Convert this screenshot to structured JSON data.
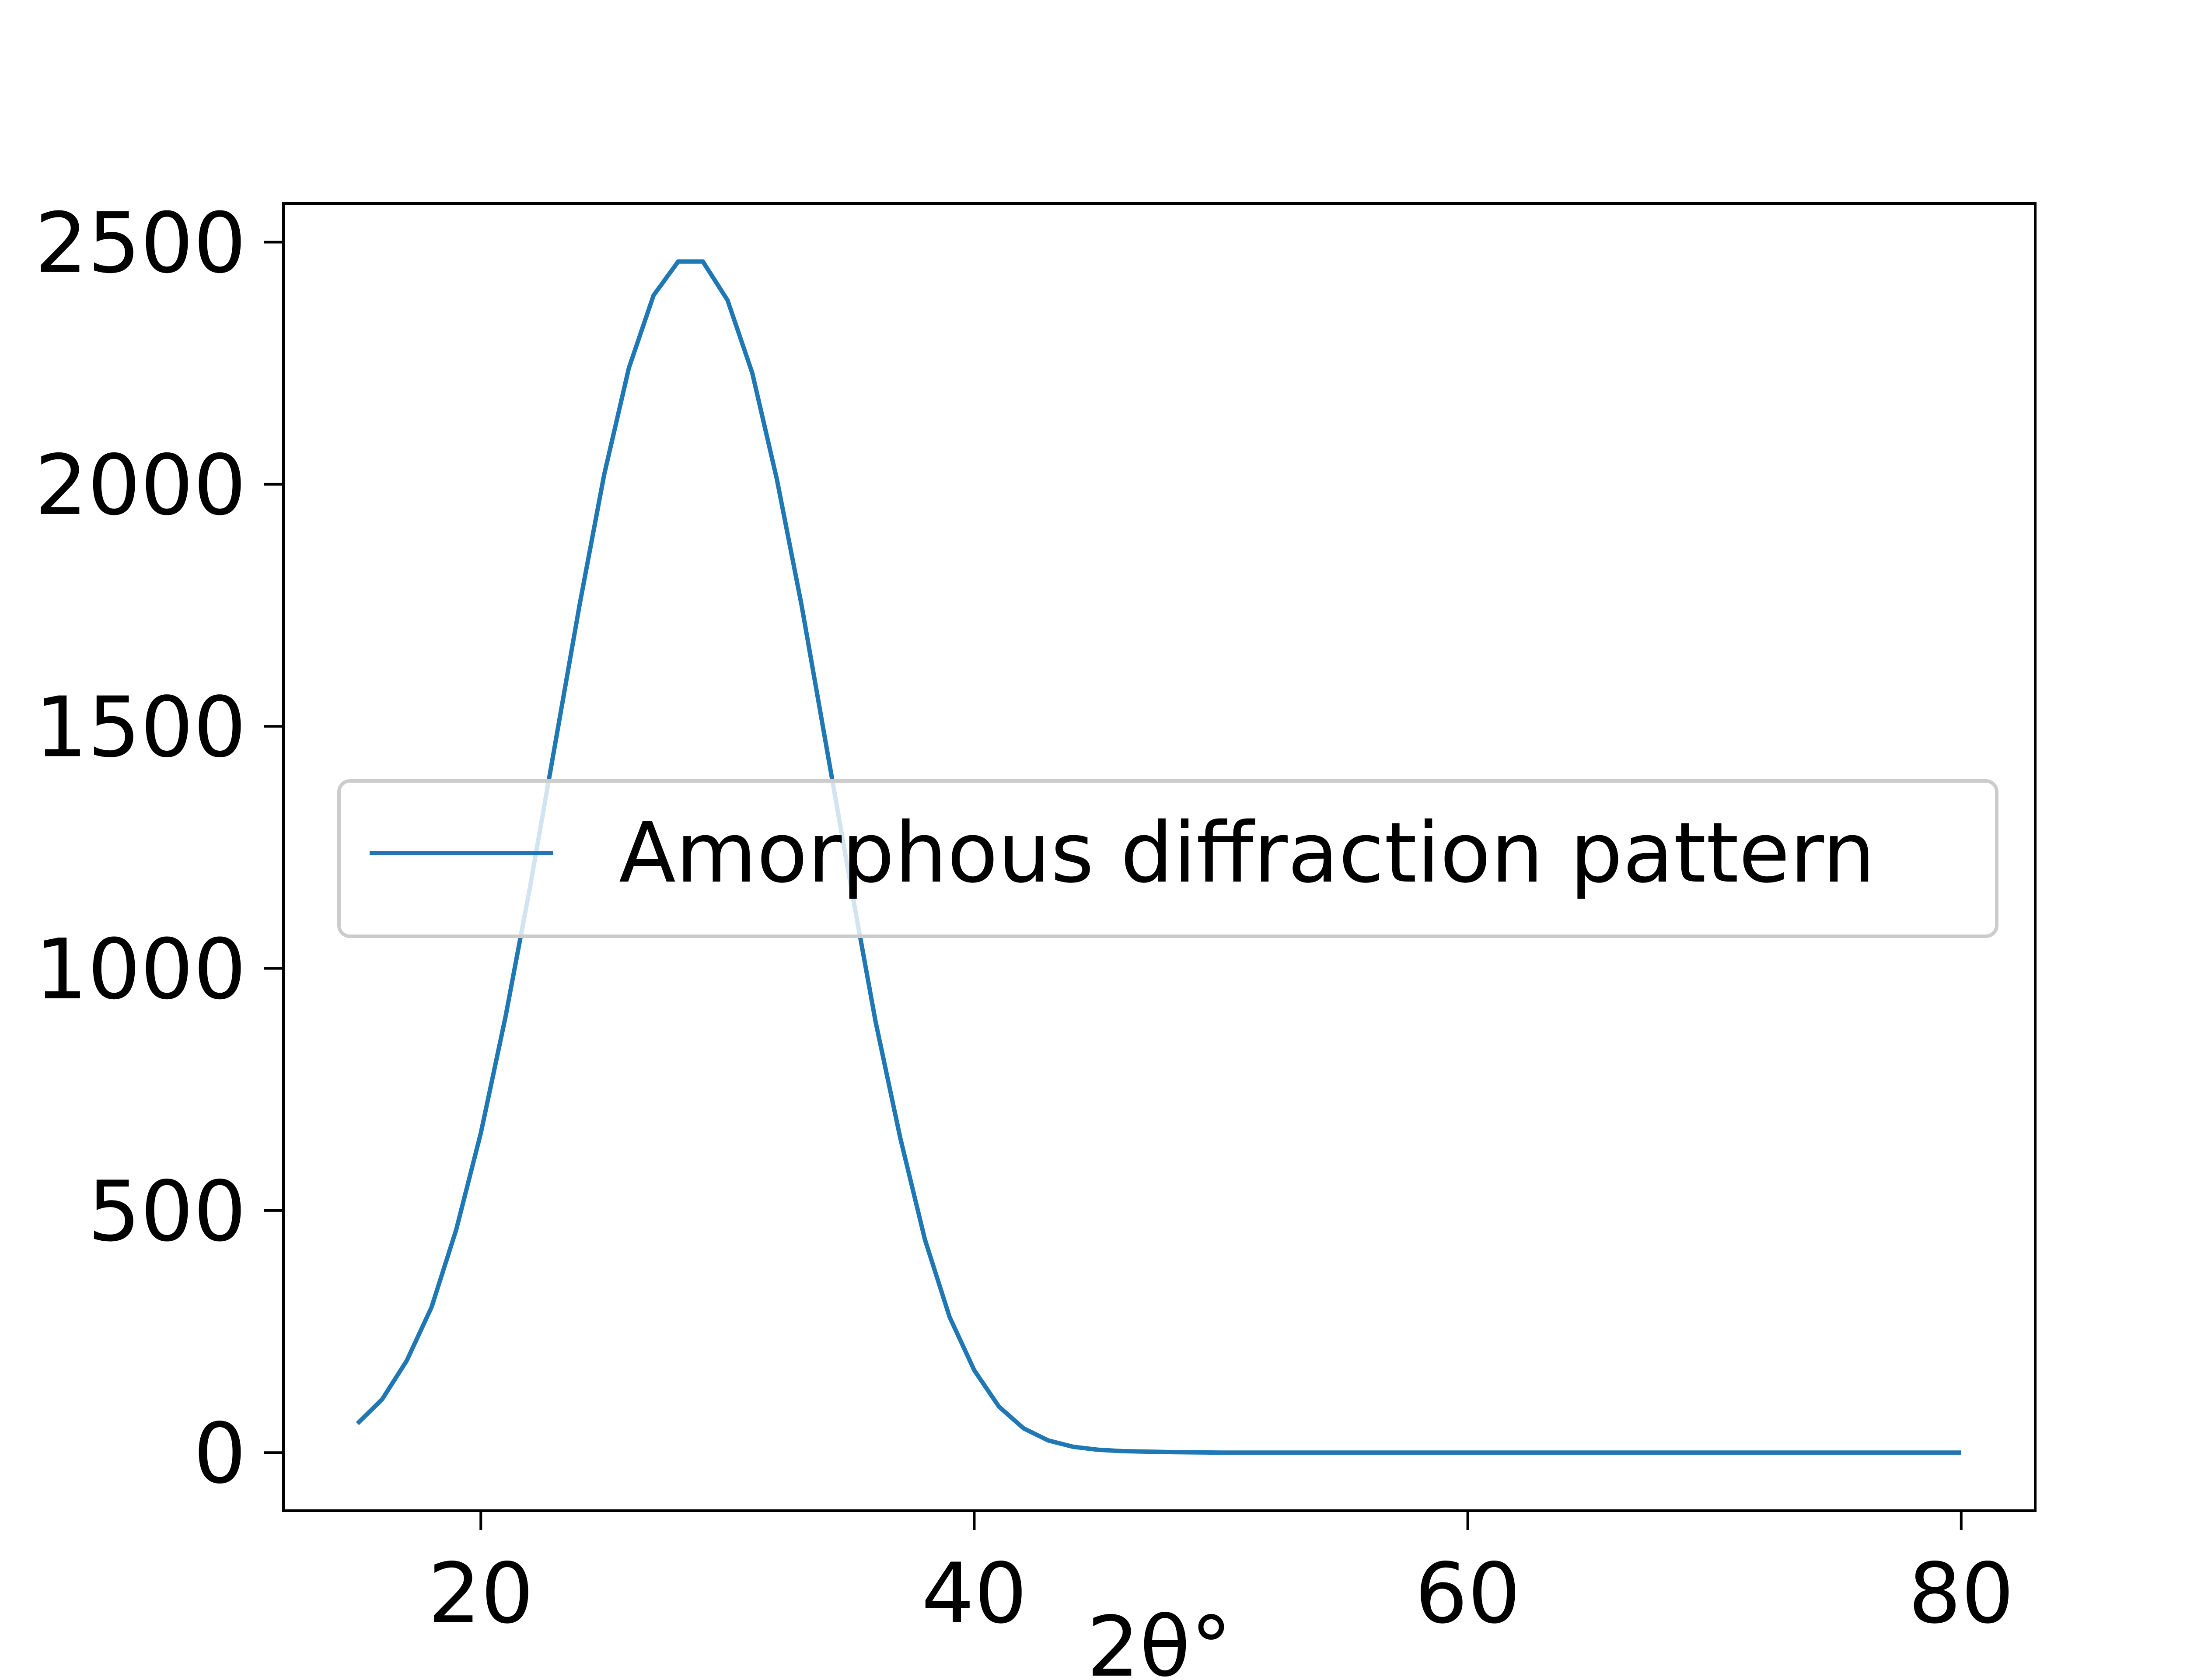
{
  "chart_data": {
    "type": "line",
    "title": "",
    "xlabel": "2θ°",
    "ylabel": "",
    "xlim": [
      12,
      83
    ],
    "ylim": [
      -120,
      2580
    ],
    "xticks": [
      20,
      40,
      60,
      80
    ],
    "yticks": [
      0,
      500,
      1000,
      1500,
      2000,
      2500
    ],
    "grid": false,
    "legend_position": "center-right",
    "series": [
      {
        "name": "Amorphous diffraction pattern",
        "color": "#1f77b4",
        "x": [
          15,
          16,
          17,
          18,
          19,
          20,
          21,
          22,
          23,
          24,
          25,
          26,
          27,
          28,
          29,
          30,
          31,
          32,
          33,
          34,
          35,
          36,
          37,
          38,
          39,
          40,
          41,
          42,
          43,
          44,
          45,
          46,
          48,
          50,
          52,
          55,
          60,
          65,
          70,
          75,
          80
        ],
        "y": [
          60,
          110,
          190,
          300,
          460,
          660,
          900,
          1170,
          1460,
          1750,
          2020,
          2240,
          2390,
          2460,
          2460,
          2380,
          2230,
          2010,
          1750,
          1460,
          1170,
          890,
          650,
          440,
          280,
          170,
          95,
          50,
          25,
          12,
          6,
          3,
          1,
          0,
          0,
          0,
          0,
          0,
          0,
          0,
          0
        ]
      }
    ]
  }
}
